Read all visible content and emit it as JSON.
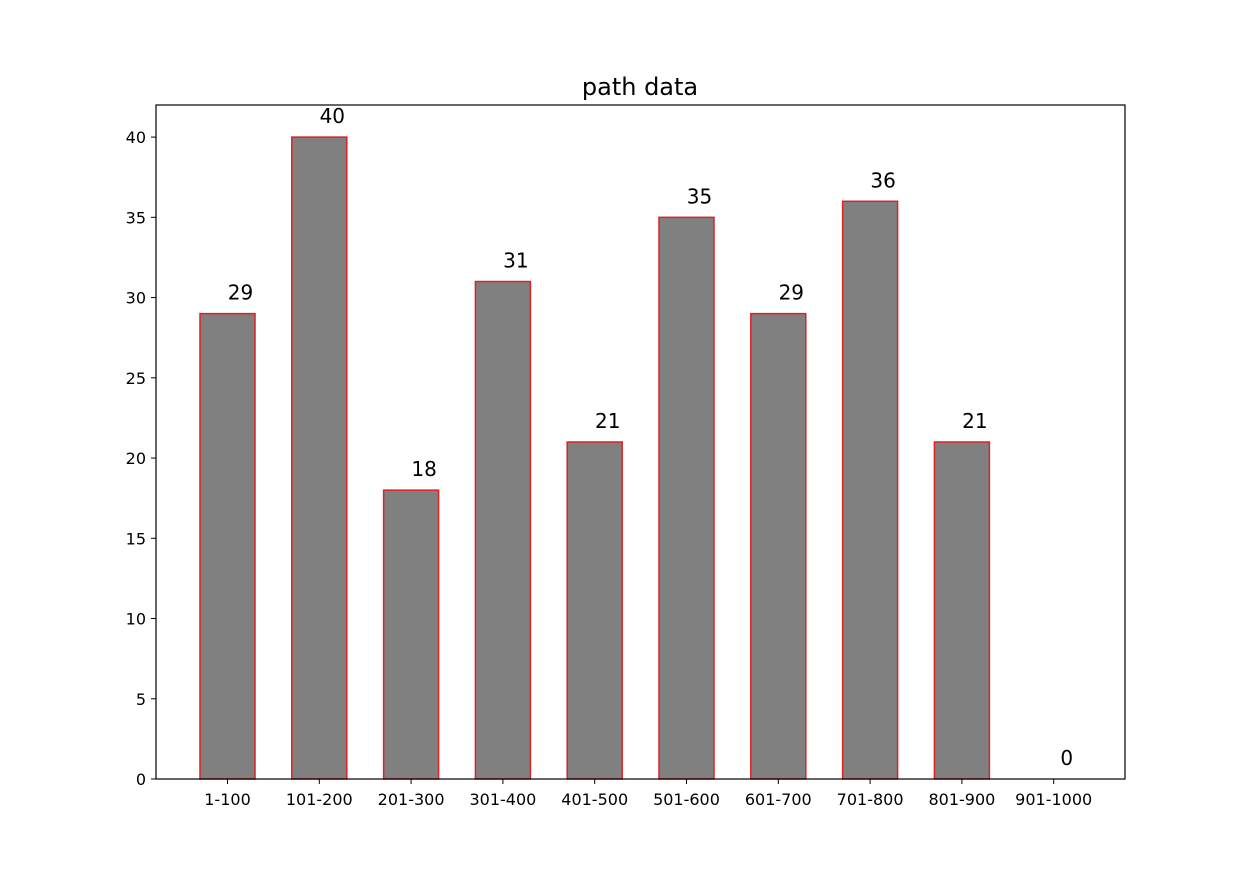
{
  "chart_data": {
    "type": "bar",
    "title": "path data",
    "xlabel": "",
    "ylabel": "",
    "categories": [
      "1-100",
      "101-200",
      "201-300",
      "301-400",
      "401-500",
      "501-600",
      "601-700",
      "701-800",
      "801-900",
      "901-1000"
    ],
    "values": [
      29,
      40,
      18,
      31,
      21,
      35,
      29,
      36,
      21,
      0
    ],
    "ylim": [
      0,
      42
    ],
    "yticks": [
      0,
      5,
      10,
      15,
      20,
      25,
      30,
      35,
      40
    ],
    "grid": false,
    "legend": "none",
    "colors": {
      "bar_fill": "#808080",
      "bar_edge": "#dd2222",
      "axis": "#000000"
    }
  }
}
